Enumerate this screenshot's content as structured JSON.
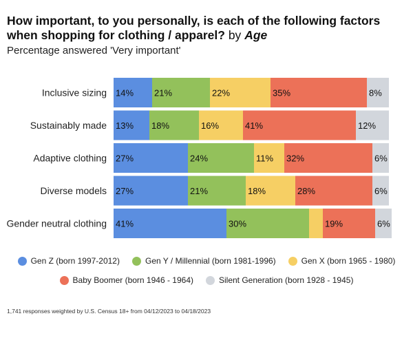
{
  "title": {
    "main": "How important, to you personally, is each of the following factors when shopping for clothing / apparel?",
    "by": "by",
    "dimension": "Age"
  },
  "subtitle": "Percentage answered 'Very important'",
  "footnote": "1,741 responses weighted by U.S. Census 18+ from 04/12/2023 to 04/18/2023",
  "chart_data": {
    "type": "bar",
    "orientation": "horizontal",
    "stacked": true,
    "categories": [
      "Inclusive sizing",
      "Sustainably made",
      "Adaptive clothing",
      "Diverse models",
      "Gender neutral clothing"
    ],
    "series": [
      {
        "name": "Gen Z (born 1997-2012)",
        "color": "#5b8ee0",
        "values": [
          14,
          13,
          27,
          27,
          41
        ]
      },
      {
        "name": "Gen Y / Millennial (born 1981-1996)",
        "color": "#93c15b",
        "values": [
          21,
          18,
          24,
          21,
          30
        ]
      },
      {
        "name": "Gen X (born 1965 - 1980)",
        "color": "#f6cf64",
        "values": [
          22,
          16,
          11,
          18,
          5
        ]
      },
      {
        "name": "Baby Boomer (born 1946 - 1964)",
        "color": "#ec7158",
        "values": [
          35,
          41,
          32,
          28,
          19
        ]
      },
      {
        "name": "Silent Generation (born 1928 - 1945)",
        "color": "#d2d6dc",
        "values": [
          8,
          12,
          6,
          6,
          6
        ]
      }
    ],
    "data_labels": [
      [
        "14%",
        "21%",
        "22%",
        "35%",
        "8%"
      ],
      [
        "13%",
        "18%",
        "16%",
        "41%",
        "12%"
      ],
      [
        "27%",
        "24%",
        "11%",
        "32%",
        "6%"
      ],
      [
        "27%",
        "21%",
        "18%",
        "28%",
        "6%"
      ],
      [
        "41%",
        "30%",
        "",
        "19%",
        "6%"
      ]
    ],
    "xlim": [
      0,
      100
    ],
    "grid": false,
    "legend_position": "bottom"
  }
}
